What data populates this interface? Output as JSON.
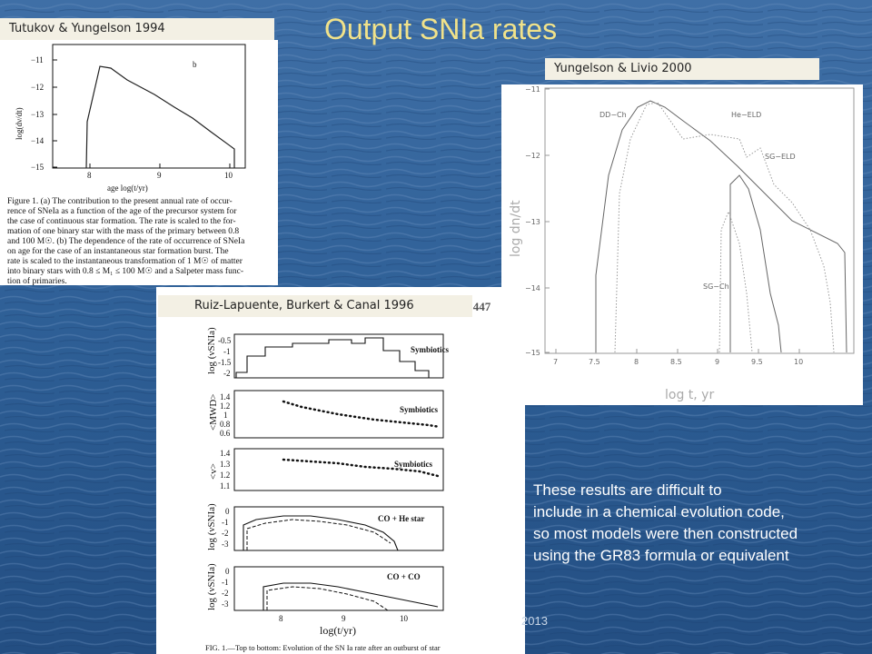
{
  "slide": {
    "title": "Output SNIa rates",
    "footer_year": "2013",
    "bullet_lines": [
      "These results are difficult to",
      " include in a chemical evolution code,",
      "so most models were then constructed",
      "using the GR83 formula or equivalent"
    ]
  },
  "figures": {
    "tutukov": {
      "label": "Tutukov & Yungelson 1994",
      "panel_letter": "b",
      "ylabel": "log(dν/dt)",
      "xlabel": "age  log(t/yr)",
      "yticks": [
        "−11",
        "−12",
        "−13",
        "−14",
        "−15"
      ],
      "xticks": [
        "8",
        "9",
        "10"
      ],
      "caption_lines": [
        "Figure 1.  (a) The contribution to the present annual rate of occur-",
        "rence of SNeIa as a function of the age of the precursor system for",
        "the case of continuous star formation. The rate is scaled to the for-",
        "mation of one binary star with the mass of the primary between 0.8",
        "and 100 M☉. (b) The dependence of the rate of occurrence of SNeIa",
        "on age for the case of an instantaneous star formation burst. The",
        "rate is scaled to the instantaneous transformation of 1 M☉ of matter",
        "into binary stars with 0.8 ≤ M₁ ≤ 100 M☉ and a Salpeter mass func-",
        "tion of primaries."
      ]
    },
    "yungelson": {
      "label": "Yungelson & Livio 2000",
      "ylabel": "log dn/dt",
      "xlabel": "log t, yr",
      "yticks": [
        "−11",
        "−12",
        "−13",
        "−14",
        "−15"
      ],
      "xticks": [
        "7",
        "7.5",
        "8",
        "8.5",
        "9",
        "9.5",
        "10"
      ],
      "curve_labels": [
        "DD−Ch",
        "He−ELD",
        "SG−ELD",
        "SG−Ch"
      ]
    },
    "ruiz": {
      "label": "Ruiz-Lapuente, Burkert & Canal 1996",
      "vol": "Vol.  447",
      "xlabel": "log(t/yr)",
      "caption": "FIG. 1.—Top to bottom: Evolution of the SN Ia rate  after an outburst of star",
      "subplots": [
        {
          "ylabel": "log (νSNIa)",
          "series": "Symbiotics",
          "yticks": [
            "-0.5",
            "-1",
            "-1.5",
            "-2"
          ]
        },
        {
          "ylabel": "<MWD>",
          "series": "Symbiotics",
          "yticks": [
            "1.4",
            "1.2",
            "1",
            "0.8",
            "0.6"
          ]
        },
        {
          "ylabel": "<v>",
          "series": "Symbiotics",
          "yticks": [
            "1.4",
            "1.3",
            "1.2",
            "1.1"
          ]
        },
        {
          "ylabel": "log (νSNIa)",
          "series": "CO + He star",
          "yticks": [
            "0",
            "-1",
            "-2",
            "-3"
          ]
        },
        {
          "ylabel": "log (νSNIa)",
          "series": "CO + CO",
          "yticks": [
            "0",
            "-1",
            "-2",
            "-3"
          ]
        }
      ],
      "xticks": [
        "8",
        "9",
        "10"
      ]
    }
  }
}
